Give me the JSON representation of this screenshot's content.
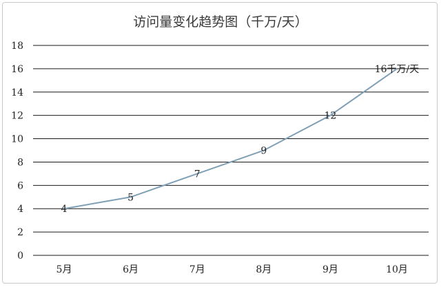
{
  "chart_data": {
    "type": "line",
    "title": "访问量变化趋势图（千万/天）",
    "categories": [
      "5月",
      "6月",
      "7月",
      "8月",
      "9月",
      "10月"
    ],
    "values": [
      4,
      5,
      7,
      9,
      12,
      16
    ],
    "data_labels": [
      "4",
      "5",
      "7",
      "9",
      "12",
      "16千万/天"
    ],
    "ylim": [
      0,
      18
    ],
    "yticks": [
      0,
      2,
      4,
      6,
      8,
      10,
      12,
      14,
      16,
      18
    ],
    "grid": true,
    "legend": "none",
    "series_color": "#7f9fb5"
  }
}
